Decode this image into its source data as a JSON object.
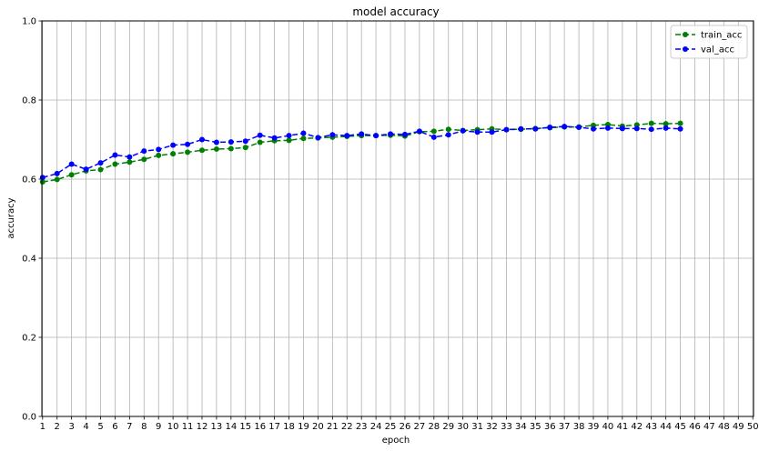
{
  "chart_data": {
    "type": "line",
    "title": "model accuracy",
    "xlabel": "epoch",
    "ylabel": "accuracy",
    "xlim": [
      1,
      50
    ],
    "ylim": [
      0.0,
      1.0
    ],
    "x_ticks": [
      1,
      2,
      3,
      4,
      5,
      6,
      7,
      8,
      9,
      10,
      11,
      12,
      13,
      14,
      15,
      16,
      17,
      18,
      19,
      20,
      21,
      22,
      23,
      24,
      25,
      26,
      27,
      28,
      29,
      30,
      31,
      32,
      33,
      34,
      35,
      36,
      37,
      38,
      39,
      40,
      41,
      42,
      43,
      44,
      45,
      46,
      47,
      48,
      49,
      50
    ],
    "y_ticks": [
      "0.0",
      "0.2",
      "0.4",
      "0.6",
      "0.8",
      "1.0"
    ],
    "y_tick_values": [
      0.0,
      0.2,
      0.4,
      0.6,
      0.8,
      1.0
    ],
    "grid": true,
    "legend_position": "top-right",
    "x": [
      1,
      2,
      3,
      4,
      5,
      6,
      7,
      8,
      9,
      10,
      11,
      12,
      13,
      14,
      15,
      16,
      17,
      18,
      19,
      20,
      21,
      22,
      23,
      24,
      25,
      26,
      27,
      28,
      29,
      30,
      31,
      32,
      33,
      34,
      35,
      36,
      37,
      38,
      39,
      40,
      41,
      42,
      43,
      44,
      45
    ],
    "series": [
      {
        "name": "train_acc",
        "color": "#008000",
        "values": [
          0.593,
          0.599,
          0.611,
          0.621,
          0.624,
          0.638,
          0.643,
          0.65,
          0.66,
          0.664,
          0.668,
          0.673,
          0.676,
          0.677,
          0.68,
          0.693,
          0.697,
          0.698,
          0.703,
          0.704,
          0.706,
          0.708,
          0.71,
          0.71,
          0.711,
          0.709,
          0.72,
          0.721,
          0.726,
          0.723,
          0.725,
          0.727,
          0.725,
          0.726,
          0.728,
          0.73,
          0.732,
          0.732,
          0.736,
          0.738,
          0.734,
          0.737,
          0.741,
          0.74,
          0.741
        ]
      },
      {
        "name": "val_acc",
        "color": "#0000ff",
        "values": [
          0.604,
          0.614,
          0.638,
          0.625,
          0.641,
          0.661,
          0.656,
          0.671,
          0.675,
          0.686,
          0.688,
          0.7,
          0.693,
          0.694,
          0.696,
          0.711,
          0.704,
          0.71,
          0.716,
          0.705,
          0.712,
          0.71,
          0.714,
          0.71,
          0.714,
          0.713,
          0.721,
          0.706,
          0.712,
          0.722,
          0.719,
          0.719,
          0.725,
          0.727,
          0.727,
          0.731,
          0.733,
          0.731,
          0.727,
          0.729,
          0.728,
          0.728,
          0.726,
          0.729,
          0.727
        ]
      }
    ]
  }
}
